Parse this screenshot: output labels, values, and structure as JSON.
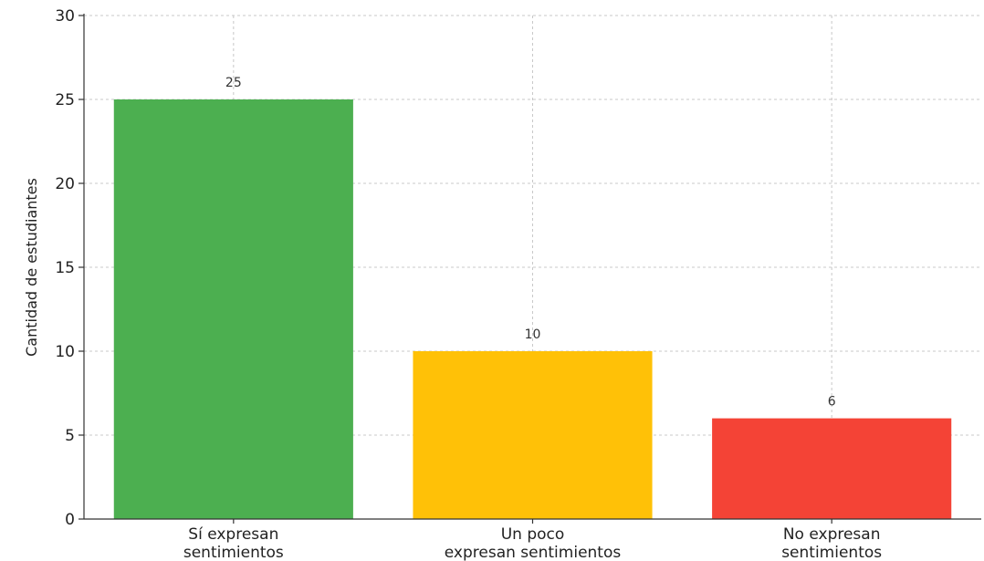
{
  "chart_data": {
    "type": "bar",
    "categories": [
      [
        "Sí expresan",
        "sentimientos"
      ],
      [
        "Un poco",
        "expresan sentimientos"
      ],
      [
        "No expresan",
        "sentimientos"
      ]
    ],
    "values": [
      25,
      10,
      6
    ],
    "colors": [
      "#4caf50",
      "#ffc107",
      "#f44336"
    ],
    "data_labels": [
      "25",
      "10",
      "6"
    ],
    "title": "",
    "xlabel": "",
    "ylabel": "Cantidad de estudiantes",
    "ylim": [
      0,
      30
    ],
    "yticks": [
      0,
      5,
      10,
      15,
      20,
      25,
      30
    ],
    "grid": true,
    "legend": false
  }
}
